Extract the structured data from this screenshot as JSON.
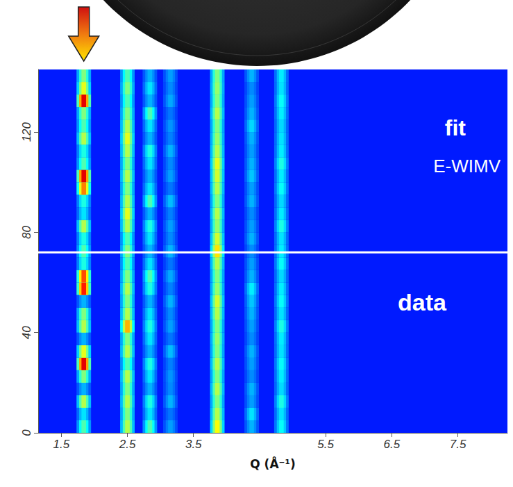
{
  "chart_data": {
    "type": "heatmap",
    "x_label": "Q (Å⁻¹)",
    "annotations": [
      "fit",
      "E-WIMV",
      "data"
    ],
    "xlim": [
      1.15,
      8.25
    ],
    "xticks": [
      1.5,
      2.5,
      3.5,
      5.5,
      6.5,
      7.5
    ],
    "ylim": [
      0,
      145
    ],
    "yticks": [
      0,
      40,
      80,
      120
    ],
    "grid": false,
    "divider": 72,
    "background": 15,
    "color_range": [
      0,
      100
    ],
    "x": [
      1.84,
      2.5,
      2.84,
      3.15,
      3.86,
      4.38,
      4.83
    ],
    "y": [
      2.5,
      7.5,
      12.5,
      17.5,
      22.5,
      27.5,
      32.5,
      37.5,
      42.5,
      47.5,
      52.5,
      57.5,
      62.5,
      67.5,
      72.5,
      77.5,
      82.5,
      87.5,
      92.5,
      97.5,
      102.5,
      107.5,
      112.5,
      117.5,
      122.5,
      127.5,
      132.5,
      137.5,
      142.5
    ],
    "cells": [
      [
        45,
        35,
        55,
        30,
        50,
        90,
        60,
        30,
        55,
        50,
        30,
        85,
        80,
        40,
        45,
        40,
        55,
        35,
        40,
        75,
        90,
        45,
        40,
        55,
        45,
        50,
        90,
        60,
        50
      ],
      [
        55,
        50,
        55,
        50,
        55,
        45,
        55,
        50,
        70,
        55,
        50,
        55,
        50,
        45,
        50,
        45,
        55,
        60,
        55,
        50,
        55,
        50,
        55,
        60,
        55,
        50,
        45,
        50,
        45
      ],
      [
        45,
        35,
        40,
        30,
        35,
        40,
        30,
        35,
        40,
        35,
        30,
        40,
        45,
        35,
        30,
        35,
        40,
        30,
        45,
        35,
        30,
        35,
        40,
        30,
        35,
        45,
        30,
        35,
        30
      ],
      [
        28,
        24,
        30,
        26,
        27,
        25,
        31,
        24,
        28,
        26,
        30,
        25,
        29,
        24,
        30,
        26,
        28,
        25,
        31,
        24,
        28,
        26,
        30,
        25,
        27,
        24,
        29,
        26,
        28
      ],
      [
        62,
        55,
        50,
        55,
        50,
        55,
        50,
        52,
        50,
        55,
        58,
        52,
        50,
        55,
        65,
        58,
        52,
        55,
        50,
        55,
        58,
        60,
        55,
        52,
        50,
        55,
        50,
        52,
        50
      ],
      [
        30,
        35,
        28,
        30,
        26,
        28,
        30,
        26,
        28,
        30,
        32,
        36,
        30,
        28,
        26,
        30,
        28,
        26,
        30,
        28,
        32,
        30,
        28,
        30,
        34,
        30,
        28,
        26,
        30
      ],
      [
        38,
        35,
        40,
        34,
        36,
        38,
        35,
        36,
        40,
        35,
        38,
        36,
        34,
        38,
        36,
        35,
        40,
        36,
        34,
        38,
        36,
        40,
        36,
        35,
        34,
        36,
        38,
        35,
        36
      ]
    ]
  }
}
